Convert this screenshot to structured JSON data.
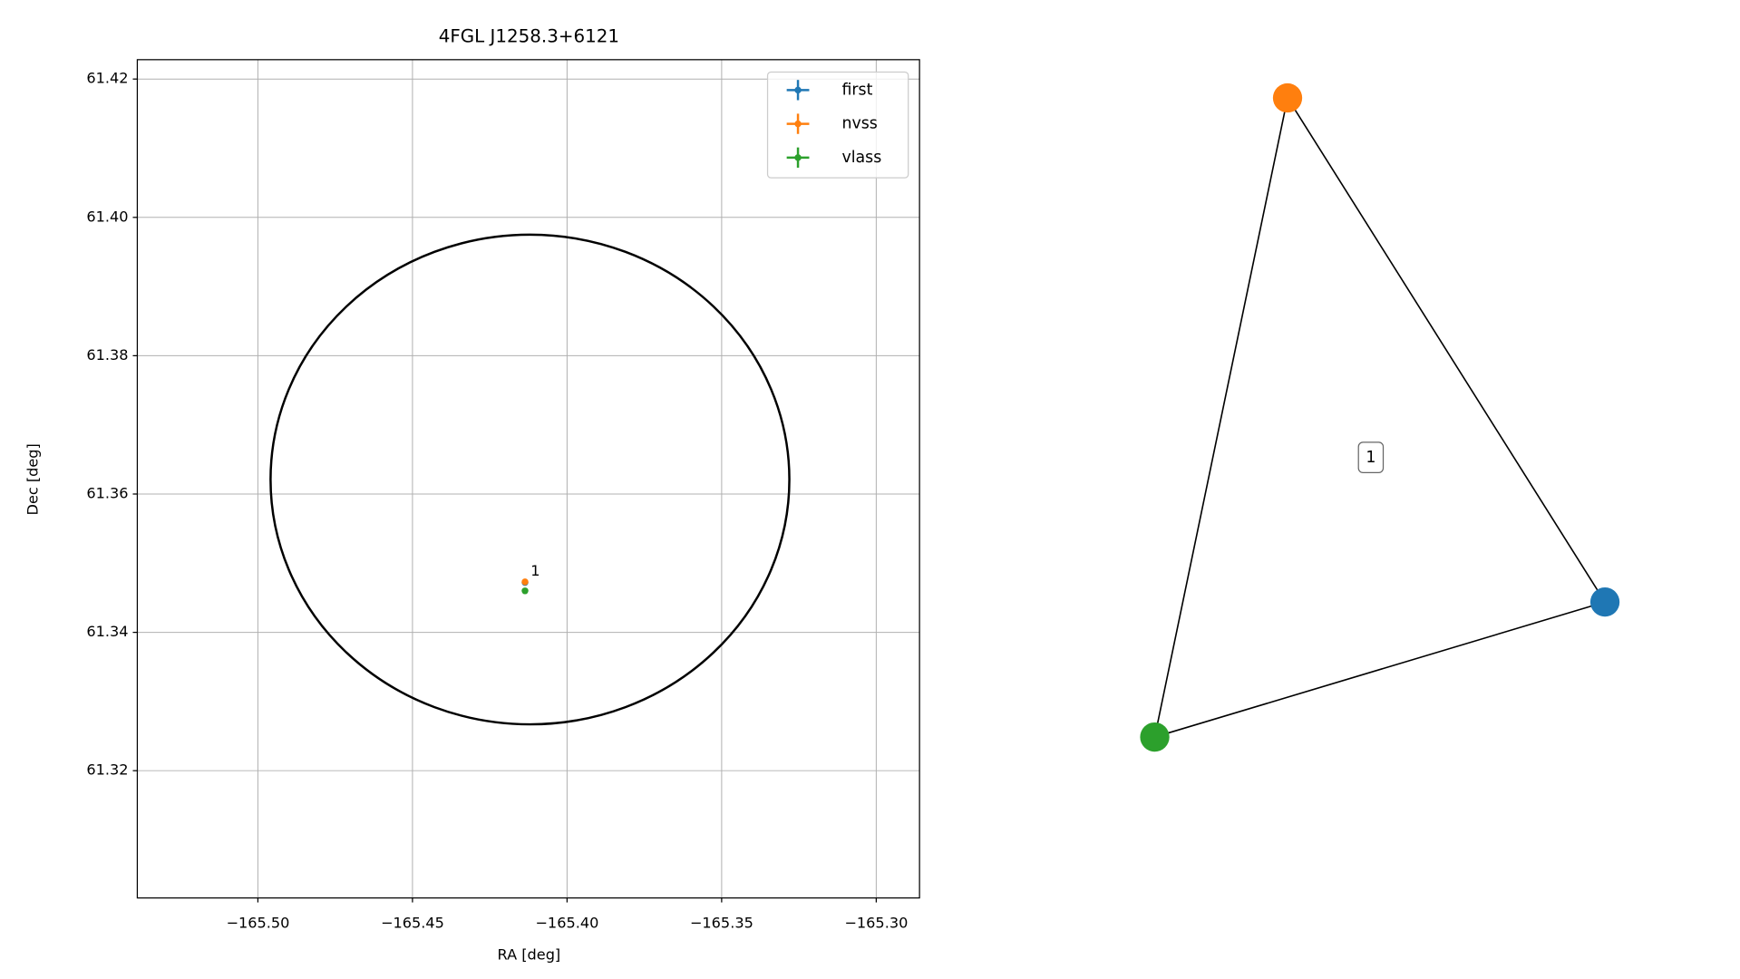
{
  "chart_data": [
    {
      "type": "scatter",
      "title": "4FGL J1258.3+6121",
      "xlabel": "RA [deg]",
      "ylabel": "Dec [deg]",
      "xlim": [
        -165.539,
        -165.286
      ],
      "ylim": [
        61.3016,
        61.4228
      ],
      "xticks": [
        {
          "value": -165.5,
          "label": "−165.50"
        },
        {
          "value": -165.45,
          "label": "−165.45"
        },
        {
          "value": -165.4,
          "label": "−165.40"
        },
        {
          "value": -165.35,
          "label": "−165.35"
        },
        {
          "value": -165.3,
          "label": "−165.30"
        }
      ],
      "yticks": [
        {
          "value": 61.32,
          "label": "61.32"
        },
        {
          "value": 61.34,
          "label": "61.34"
        },
        {
          "value": 61.36,
          "label": "61.36"
        },
        {
          "value": 61.38,
          "label": "61.38"
        },
        {
          "value": 61.4,
          "label": "61.40"
        },
        {
          "value": 61.42,
          "label": "61.42"
        }
      ],
      "grid": true,
      "legend": "upper right",
      "region": {
        "center_x": -165.412,
        "center_y": 61.3621,
        "radius_x": 0.0839,
        "radius_y": 0.0354,
        "color": "#000000"
      },
      "series": [
        {
          "name": "first",
          "color": "#1f77b4",
          "x": [
            -165.4136
          ],
          "values": [
            61.3472
          ]
        },
        {
          "name": "nvss",
          "color": "#ff7f0e",
          "x": [
            -165.4136
          ],
          "values": [
            61.3473
          ]
        },
        {
          "name": "vlass",
          "color": "#2ca02c",
          "x": [
            -165.4136
          ],
          "values": [
            61.346
          ]
        }
      ],
      "annotations": [
        {
          "text": "1"
        }
      ]
    },
    {
      "type": "graph",
      "nodes": [
        {
          "color": "#1f77b4"
        },
        {
          "color": "#ff7f0e"
        },
        {
          "color": "#2ca02c"
        }
      ],
      "edges": [
        [
          0,
          1
        ],
        [
          1,
          2
        ],
        [
          2,
          0
        ]
      ],
      "label": "1"
    }
  ]
}
